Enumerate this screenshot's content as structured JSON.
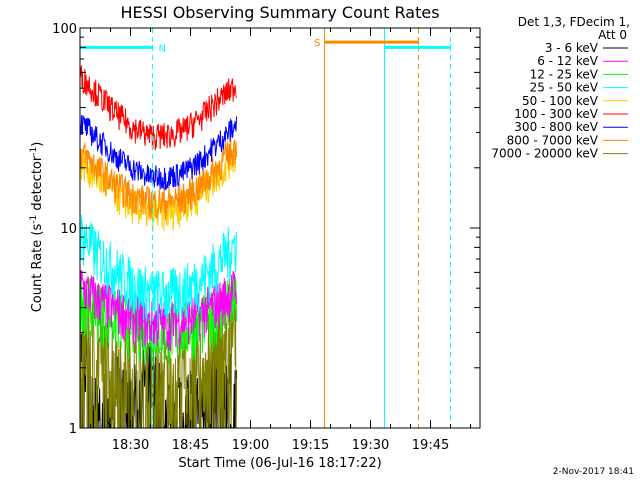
{
  "chart_data": {
    "type": "line",
    "title": "HESSI Observing Summary Count Rates",
    "xlabel": "Start Time (06-Jul-16 18:17:22)",
    "ylabel": "Count Rate (s",
    "ylabel_sup1": "-1",
    "ylabel_mid": " detector",
    "ylabel_sup2": "-1",
    "ylabel_end": ")",
    "yscale": "log",
    "ylim": [
      1,
      100
    ],
    "y_tick_labels": [
      "1",
      "10",
      "100"
    ],
    "x_tick_labels": [
      "18:30",
      "18:45",
      "19:00",
      "19:15",
      "19:30",
      "19:45"
    ],
    "x_ticks_min": [
      30,
      45,
      60,
      75,
      90,
      105
    ],
    "xlim_min": [
      17.37,
      117.37
    ],
    "data_span_min": [
      17.37,
      56.5
    ],
    "legend_header": [
      "Det 1,3, FDecim 1,",
      "Att 0"
    ],
    "series": [
      {
        "name": "3 - 6 keV",
        "color": "#000000",
        "profile": [
          2.6,
          1.2,
          1.8,
          1.4,
          2.0,
          1.2,
          1.6,
          1.3,
          2.2,
          1.4
        ]
      },
      {
        "name": "6 - 12 keV",
        "color": "#ff00ff",
        "profile": [
          5.2,
          4.4,
          4.0,
          3.6,
          3.4,
          3.4,
          3.5,
          3.8,
          4.3,
          5.0
        ]
      },
      {
        "name": "12 - 25 keV",
        "color": "#00ff00",
        "profile": [
          4.6,
          4.0,
          3.6,
          3.3,
          3.1,
          3.1,
          3.2,
          3.4,
          3.9,
          4.4
        ]
      },
      {
        "name": "25 - 50 keV",
        "color": "#00ffff",
        "profile": [
          9.5,
          7.5,
          6.2,
          5.3,
          4.8,
          4.7,
          5.0,
          5.6,
          6.8,
          8.5
        ]
      },
      {
        "name": "50 - 100 keV",
        "color": "#ffcc00",
        "profile": [
          22,
          18,
          15,
          13,
          12,
          12,
          13,
          15,
          19,
          24
        ]
      },
      {
        "name": "100 - 300 keV",
        "color": "#ff0000",
        "profile": [
          58,
          47,
          38,
          32,
          29,
          29,
          31,
          36,
          44,
          52
        ]
      },
      {
        "name": "300 - 800 keV",
        "color": "#0000ff",
        "profile": [
          34,
          28,
          23,
          20,
          18,
          18,
          19,
          22,
          27,
          33
        ]
      },
      {
        "name": "800 - 7000 keV",
        "color": "#ff8800",
        "profile": [
          24,
          20,
          16.5,
          14.5,
          13.5,
          13.5,
          14.2,
          16.5,
          20.5,
          26
        ]
      },
      {
        "name": "7000 - 20000 keV",
        "color": "#808000",
        "profile": [
          3.4,
          2.6,
          2.2,
          2.0,
          1.8,
          1.8,
          2.0,
          2.2,
          2.6,
          3.2
        ]
      }
    ],
    "flags": {
      "night": {
        "label": "N",
        "color": "#00ffff",
        "y": 80,
        "segments": [
          [
            17.37,
            35.5
          ],
          [
            93.5,
            110.0
          ]
        ]
      },
      "saa": {
        "label": "S",
        "color": "#ff8800",
        "y": 85,
        "segments": [
          [
            78.5,
            102.0
          ]
        ]
      }
    },
    "vlines": [
      {
        "x_min": 35.5,
        "color": "#00ffff",
        "style": "dashed"
      },
      {
        "x_min": 78.5,
        "color": "#ff8800",
        "style": "solid"
      },
      {
        "x_min": 93.5,
        "color": "#00ffff",
        "style": "solid"
      },
      {
        "x_min": 102.0,
        "color": "#ff8800",
        "style": "dashed"
      },
      {
        "x_min": 110.0,
        "color": "#00ffff",
        "style": "dashed"
      }
    ]
  },
  "footer": {
    "timestamp": "2-Nov-2017 18:41"
  }
}
